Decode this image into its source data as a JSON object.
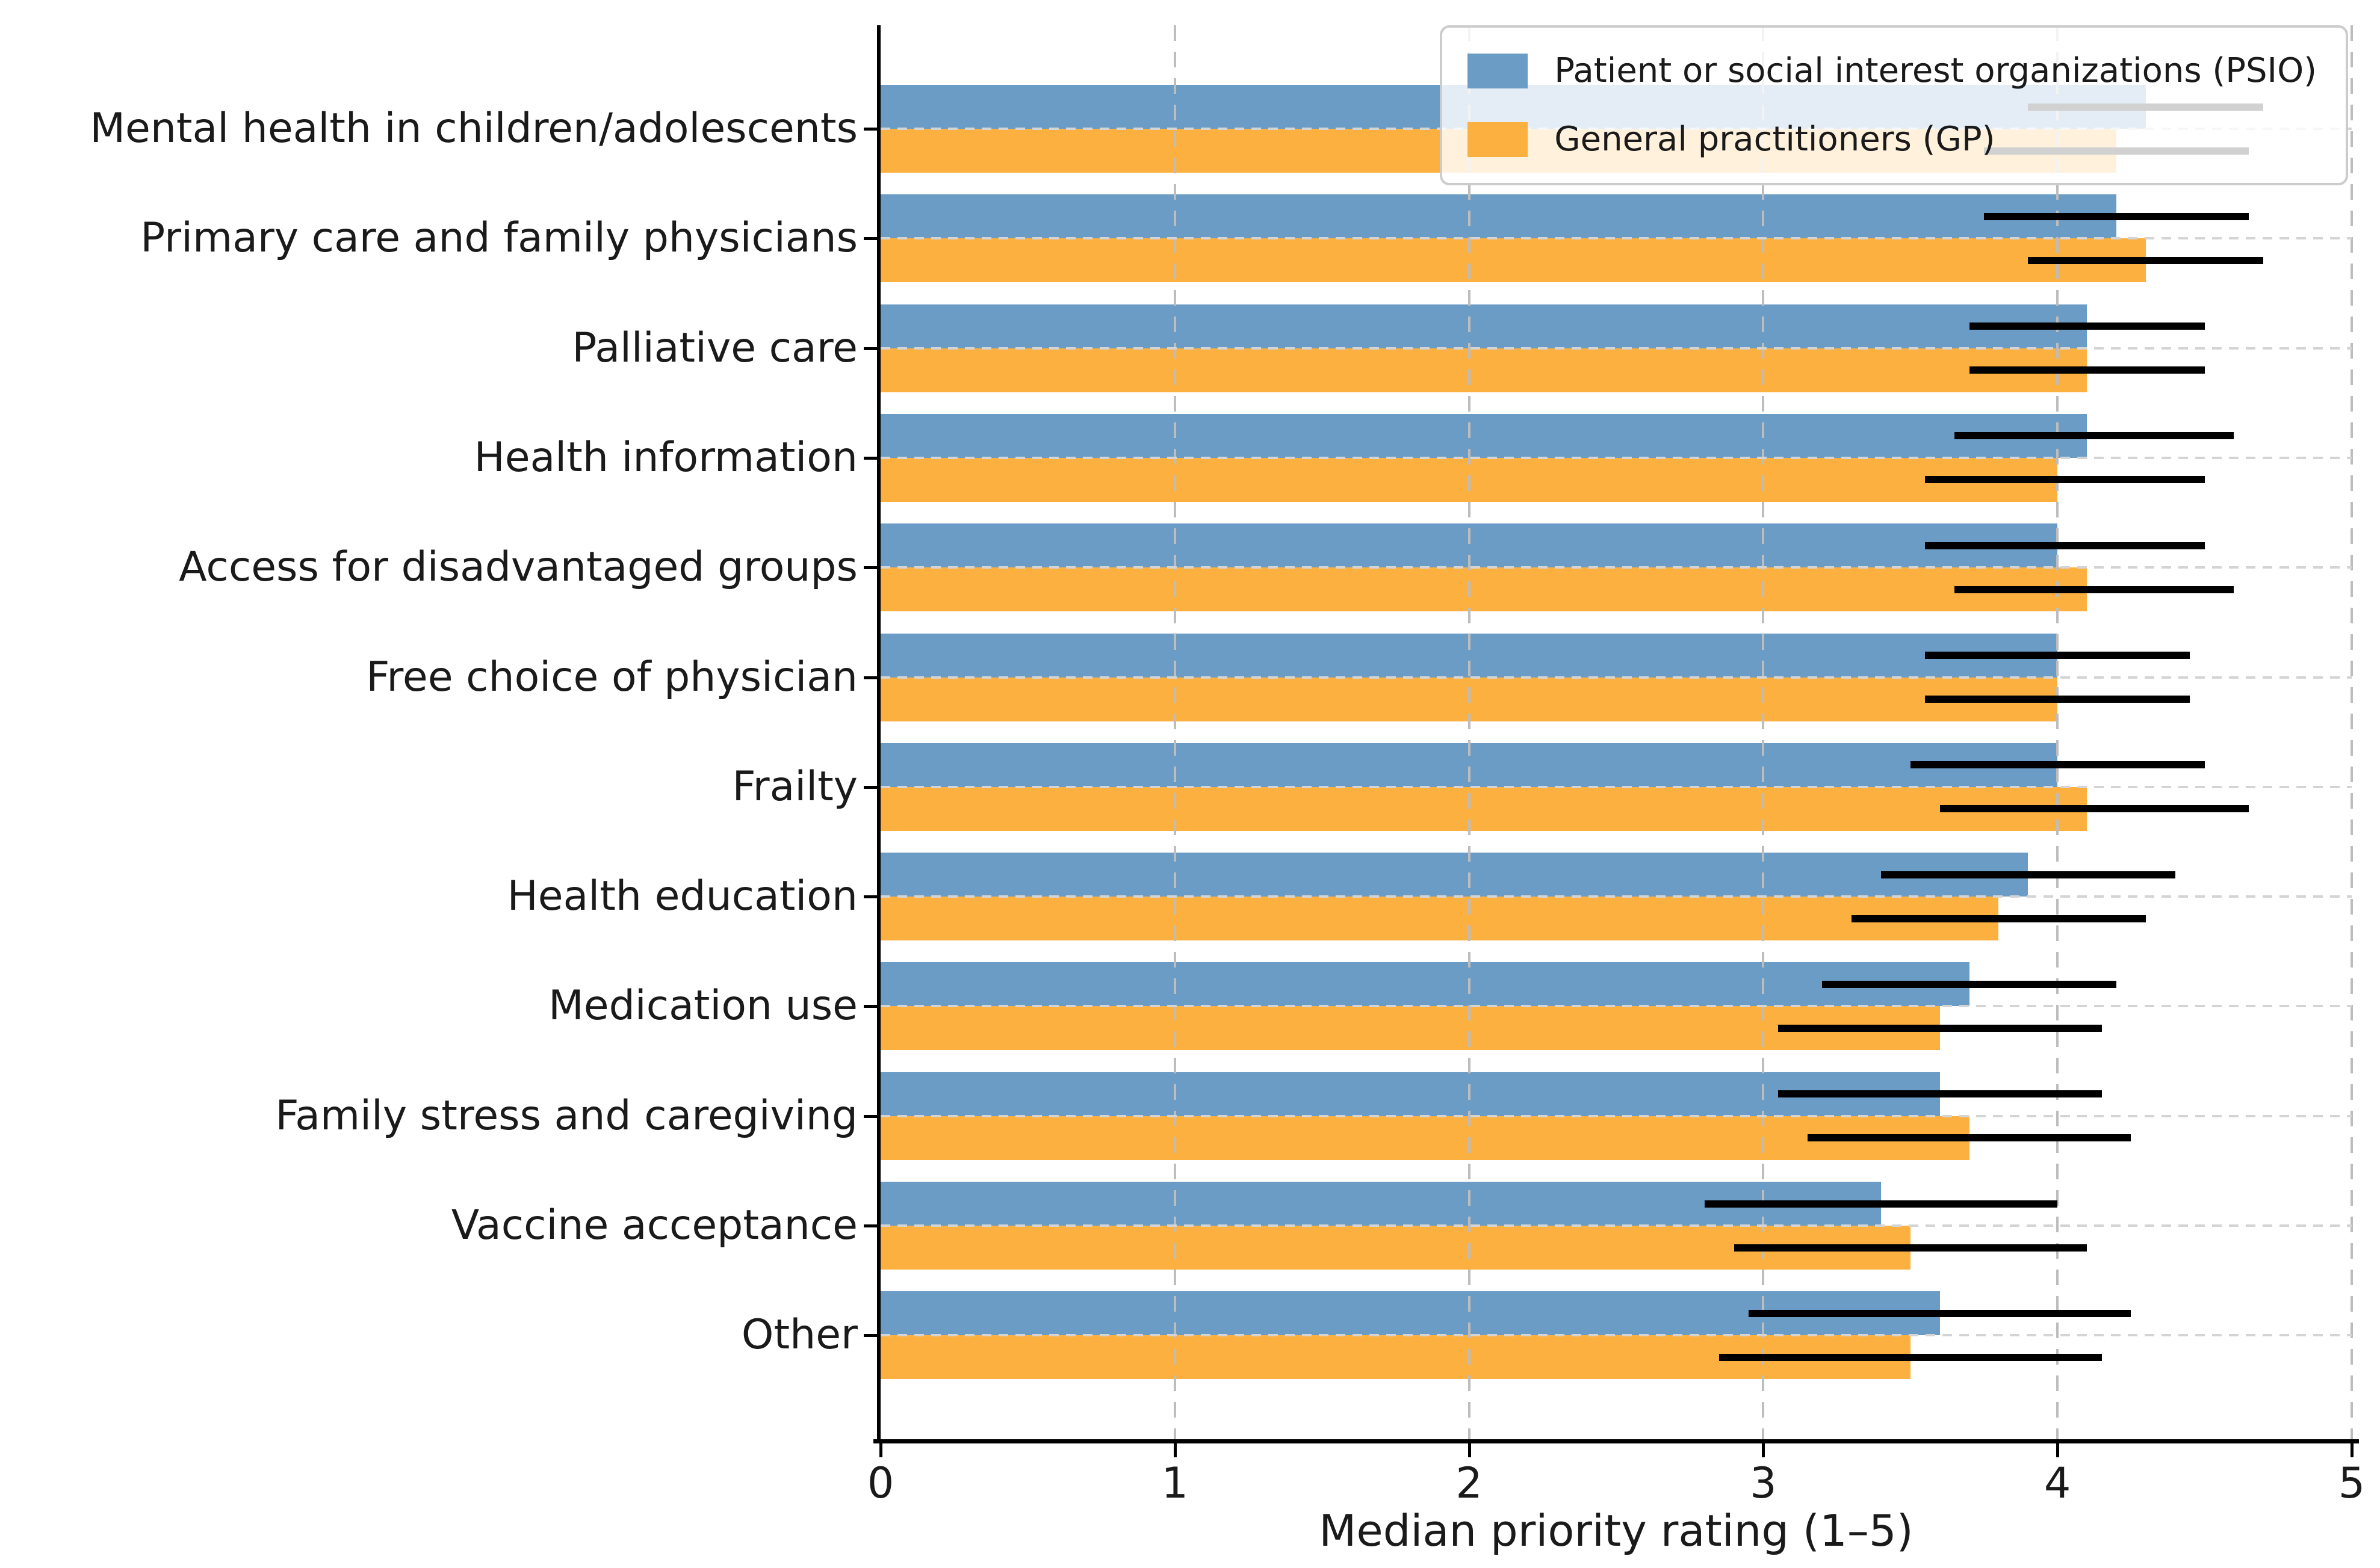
{
  "figure": {
    "background": "#ffffff"
  },
  "axes": {
    "xlabel": "Median priority rating (1–5)",
    "xlim": [
      0,
      5
    ],
    "xticks": [
      "0",
      "1",
      "2",
      "3",
      "4",
      "5"
    ],
    "grid_color_vertical": "#bdbdbd",
    "grid_color_horizontal": "#d4d4d4",
    "error_bar_color": "#000000"
  },
  "legend": {
    "position": "upper right",
    "entries": [
      {
        "label": "Patient or social interest organizations (PSIO)",
        "color": "#6A9CC5"
      },
      {
        "label": "General practitioners (GP)",
        "color": "#FBB040"
      }
    ]
  },
  "chart_data": {
    "type": "bar",
    "orientation": "horizontal",
    "title": "",
    "xlabel": "Median priority rating (1–5)",
    "ylabel": "",
    "xlim": [
      0,
      5
    ],
    "xticks": [
      0,
      1,
      2,
      3,
      4,
      5
    ],
    "grid": true,
    "legend_position": "upper right",
    "categories": [
      "Mental health in children/adolescents",
      "Primary care and family physicians",
      "Palliative care",
      "Health information",
      "Access for disadvantaged groups",
      "Free choice of physician",
      "Frailty",
      "Health education",
      "Medication use",
      "Family stress and caregiving",
      "Vaccine acceptance",
      "Other"
    ],
    "series": [
      {
        "name": "Patient or social interest organizations (PSIO)",
        "color": "#6A9CC5",
        "values": [
          4.3,
          4.2,
          4.1,
          4.1,
          4.0,
          4.0,
          4.0,
          3.9,
          3.7,
          3.6,
          3.4,
          3.6
        ],
        "error_low": [
          3.9,
          3.75,
          3.7,
          3.65,
          3.55,
          3.55,
          3.5,
          3.4,
          3.2,
          3.05,
          2.8,
          2.95
        ],
        "error_high": [
          4.7,
          4.65,
          4.5,
          4.6,
          4.5,
          4.45,
          4.5,
          4.4,
          4.2,
          4.15,
          4.0,
          4.25
        ]
      },
      {
        "name": "General practitioners (GP)",
        "color": "#FBB040",
        "values": [
          4.2,
          4.3,
          4.1,
          4.0,
          4.1,
          4.0,
          4.1,
          3.8,
          3.6,
          3.7,
          3.5,
          3.5
        ],
        "error_low": [
          3.75,
          3.9,
          3.7,
          3.55,
          3.65,
          3.55,
          3.6,
          3.3,
          3.05,
          3.15,
          2.9,
          2.85
        ],
        "error_high": [
          4.65,
          4.7,
          4.5,
          4.5,
          4.6,
          4.45,
          4.65,
          4.3,
          4.15,
          4.25,
          4.1,
          4.15
        ]
      }
    ]
  }
}
